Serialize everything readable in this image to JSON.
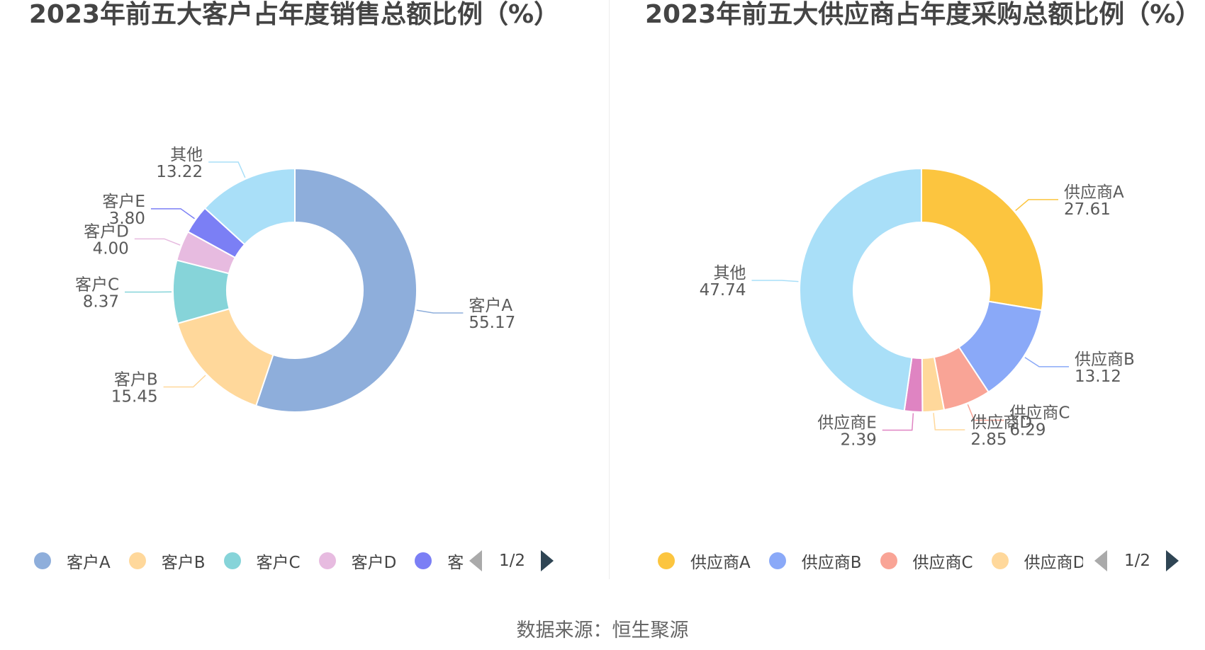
{
  "chart_data": [
    {
      "type": "pie",
      "title": "2023年前五大客户占年度销售总额比例（%）",
      "labels": [
        "客户A",
        "客户B",
        "客户C",
        "客户D",
        "客户E",
        "其他"
      ],
      "values": [
        55.17,
        15.45,
        8.37,
        4.0,
        3.8,
        13.22
      ],
      "value_labels": [
        "55.17",
        "15.45",
        "8.37",
        "4.00",
        "3.80",
        "13.22"
      ],
      "colors": [
        "#8eaedb",
        "#ffd89b",
        "#86d4d9",
        "#e7bbe0",
        "#7b7ff5",
        "#a9dff8"
      ],
      "legend": [
        "客户A",
        "客户B",
        "客户C",
        "客户D",
        "客户E"
      ],
      "legend_placement": "bottom",
      "pager": "1/2"
    },
    {
      "type": "pie",
      "title": "2023年前五大供应商占年度采购总额比例（%）",
      "labels": [
        "供应商A",
        "供应商B",
        "供应商C",
        "供应商D",
        "供应商E",
        "其他"
      ],
      "values": [
        27.61,
        13.12,
        6.29,
        2.85,
        2.39,
        47.74
      ],
      "value_labels": [
        "27.61",
        "13.12",
        "6.29",
        "2.85",
        "2.39",
        "47.74"
      ],
      "colors": [
        "#fcc53f",
        "#8aa9f8",
        "#f9a496",
        "#ffd89b",
        "#df84c2",
        "#a9dff8"
      ],
      "legend": [
        "供应商A",
        "供应商B",
        "供应商C",
        "供应商D"
      ],
      "legend_placement": "bottom",
      "pager": "1/2"
    }
  ],
  "footer": {
    "source": "数据来源：恒生聚源"
  }
}
